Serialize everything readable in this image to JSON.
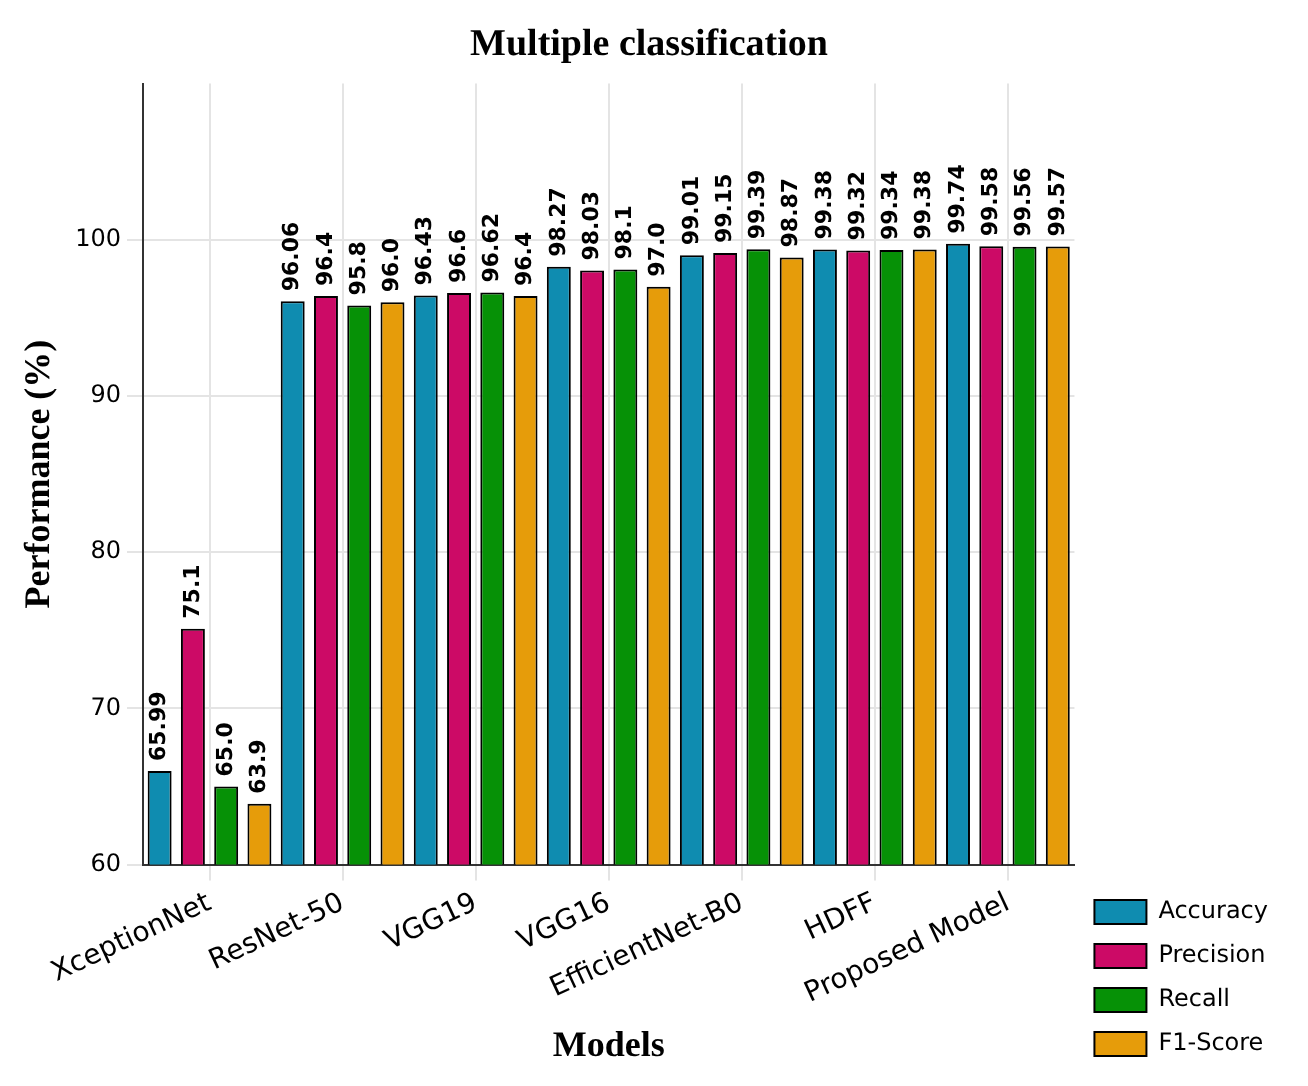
{
  "chart_data": {
    "type": "bar",
    "title": "Multiple classification",
    "xlabel": "Models",
    "ylabel": "Performance (%)",
    "categories": [
      "XceptionNet",
      "ResNet-50",
      "VGG19",
      "VGG16",
      "EfficientNet-B0",
      "HDFF",
      "Proposed Model"
    ],
    "series": [
      {
        "name": "Accuracy",
        "color": "#0f8cb0",
        "values": [
          65.99,
          96.06,
          96.43,
          98.27,
          99.01,
          99.38,
          99.74
        ],
        "value_labels": [
          "65.99",
          "96.06",
          "96.43",
          "98.27",
          "99.01",
          "99.38",
          "99.74"
        ]
      },
      {
        "name": "Precision",
        "color": "#cc0a66",
        "values": [
          75.1,
          96.4,
          96.6,
          98.03,
          99.15,
          99.32,
          99.58
        ],
        "value_labels": [
          "75.1",
          "96.4",
          "96.6",
          "98.03",
          "99.15",
          "99.32",
          "99.58"
        ]
      },
      {
        "name": "Recall",
        "color": "#069106",
        "values": [
          65.0,
          95.8,
          96.62,
          98.1,
          99.39,
          99.34,
          99.56
        ],
        "value_labels": [
          "65.0",
          "95.8",
          "96.62",
          "98.1",
          "99.39",
          "99.34",
          "99.56"
        ]
      },
      {
        "name": "F1-Score",
        "color": "#e69c0a",
        "values": [
          63.9,
          96.0,
          96.4,
          97.0,
          98.87,
          99.38,
          99.57
        ],
        "value_labels": [
          "63.9",
          "96.0",
          "96.4",
          "97.0",
          "98.87",
          "99.38",
          "99.57"
        ]
      }
    ],
    "ylim": [
      60,
      110
    ],
    "yticks": [
      60,
      70,
      80,
      90,
      100
    ],
    "grid": true,
    "legend": "bottom right"
  }
}
